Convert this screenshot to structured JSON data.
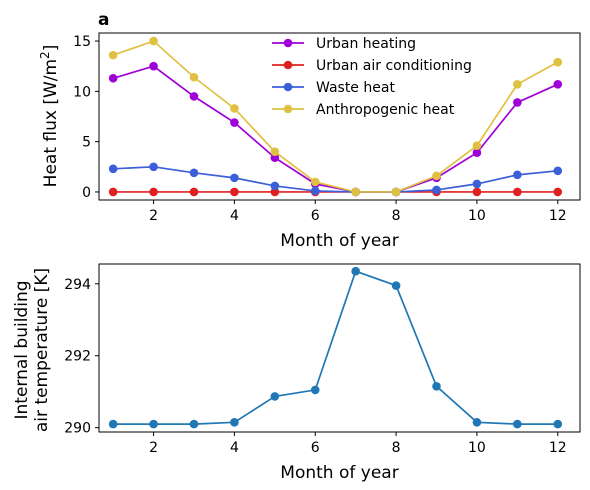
{
  "chart_data": [
    {
      "type": "line",
      "panel_label": "a",
      "title": "",
      "xlabel": "Month of year",
      "ylabel": "Heat flux [W/m",
      "ylabel_sup": "2",
      "ylabel_end": "]",
      "xlim": [
        0.65,
        12.55
      ],
      "ylim": [
        -0.8,
        15.8
      ],
      "xticks": [
        2,
        4,
        6,
        8,
        10,
        12
      ],
      "yticks": [
        0,
        5,
        10,
        15
      ],
      "grid": false,
      "legend_position": "top-center",
      "x": [
        1,
        2,
        3,
        4,
        5,
        6,
        7,
        8,
        9,
        10,
        11,
        12
      ],
      "series": [
        {
          "name": "Urban heating",
          "color": "#a000d8",
          "values": [
            11.3,
            12.5,
            9.5,
            6.9,
            3.4,
            0.8,
            0.0,
            0.0,
            1.4,
            3.9,
            8.9,
            10.7
          ]
        },
        {
          "name": "Urban air conditioning",
          "color": "#e02020",
          "values": [
            0,
            0,
            0,
            0,
            0,
            0,
            0,
            0,
            0,
            0,
            0,
            0
          ]
        },
        {
          "name": "Waste heat",
          "color": "#3a5fd8",
          "values": [
            2.3,
            2.5,
            1.9,
            1.4,
            0.6,
            0.1,
            0.0,
            0.0,
            0.2,
            0.8,
            1.7,
            2.1
          ]
        },
        {
          "name": "Anthropogenic heat",
          "color": "#e0c040",
          "values": [
            13.6,
            15.0,
            11.4,
            8.3,
            4.0,
            1.0,
            0.0,
            0.0,
            1.6,
            4.6,
            10.7,
            12.9
          ]
        }
      ]
    },
    {
      "type": "line",
      "title": "",
      "xlabel": "Month of year",
      "ylabel_line1": "Internal building",
      "ylabel_line2": "air temperature [K]",
      "xlim": [
        0.65,
        12.55
      ],
      "ylim": [
        289.88,
        294.55
      ],
      "xticks": [
        2,
        4,
        6,
        8,
        10,
        12
      ],
      "yticks": [
        290,
        292,
        294
      ],
      "grid": false,
      "x": [
        1,
        2,
        3,
        4,
        5,
        6,
        7,
        8,
        9,
        10,
        11,
        12
      ],
      "series": [
        {
          "color": "#1f77b4",
          "values": [
            290.1,
            290.1,
            290.1,
            290.15,
            290.87,
            291.05,
            294.35,
            293.95,
            291.15,
            290.15,
            290.1,
            290.1
          ]
        }
      ]
    }
  ]
}
